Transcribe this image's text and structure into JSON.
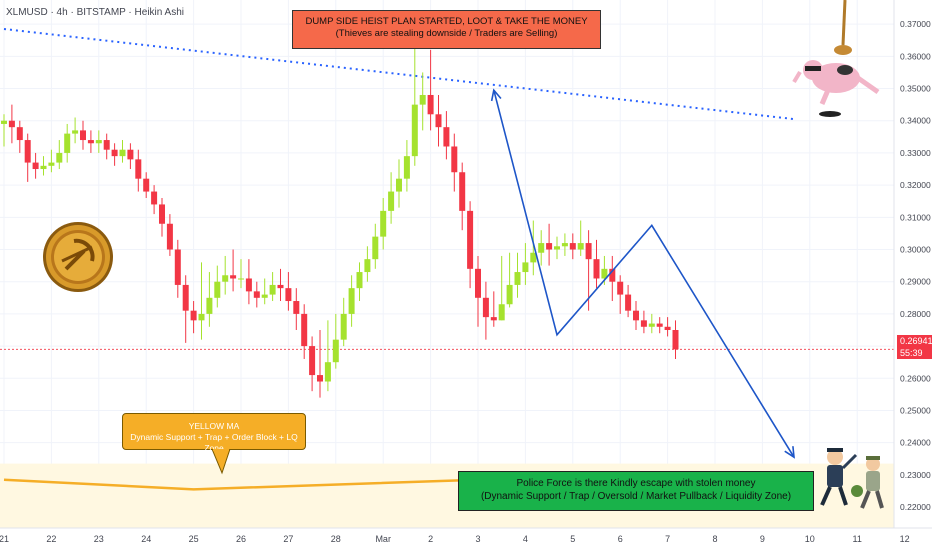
{
  "header": {
    "title": "XLMUSD · 4h · BITSTAMP · Heikin Ashi"
  },
  "annotations": {
    "top_line1": "DUMP SIDE HEIST PLAN STARTED, LOOT & TAKE THE MONEY",
    "top_line2": "(Thieves are stealing downside / Traders are Selling)",
    "ma_line1": "YELLOW MA",
    "ma_line2": "Dynamic Support + Trap + Order Block + LQ Zone",
    "police_line1": "Police Force is there Kindly escape with stolen money",
    "police_line2": "(Dynamic Support / Trap / Oversold / Market Pullback / Liquidity Zone)"
  },
  "price_tag": {
    "price": "0.26941",
    "countdown": "55:39"
  },
  "colors": {
    "up": "#a5e22e",
    "down": "#f23645",
    "ma": "#f5ae27",
    "trend": "#1e56c8",
    "dotted": "#2962ff"
  },
  "chart_data": {
    "type": "candlestick",
    "title": "XLMUSD · 4h · BITSTAMP · Heikin Ashi",
    "ylim": [
      0.2135,
      0.3775
    ],
    "y_ticks": [
      "0.37000",
      "0.36000",
      "0.35000",
      "0.34000",
      "0.33000",
      "0.32000",
      "0.31000",
      "0.30000",
      "0.29000",
      "0.28000",
      "0.27000",
      "0.26000",
      "0.25000",
      "0.24000",
      "0.23000",
      "0.22000"
    ],
    "x_ticks": [
      {
        "i": 0,
        "label": "21"
      },
      {
        "i": 6,
        "label": "22"
      },
      {
        "i": 12,
        "label": "23"
      },
      {
        "i": 18,
        "label": "24"
      },
      {
        "i": 24,
        "label": "25"
      },
      {
        "i": 30,
        "label": "26"
      },
      {
        "i": 36,
        "label": "27"
      },
      {
        "i": 42,
        "label": "28"
      },
      {
        "i": 48,
        "label": "Mar"
      },
      {
        "i": 54,
        "label": "2"
      },
      {
        "i": 60,
        "label": "3"
      },
      {
        "i": 66,
        "label": "4"
      },
      {
        "i": 72,
        "label": "5"
      },
      {
        "i": 78,
        "label": "6"
      },
      {
        "i": 84,
        "label": "7"
      },
      {
        "i": 90,
        "label": "8"
      },
      {
        "i": 96,
        "label": "9"
      },
      {
        "i": 102,
        "label": "10"
      },
      {
        "i": 108,
        "label": "11"
      },
      {
        "i": 114,
        "label": "12"
      }
    ],
    "candles": [
      [
        0.339,
        0.34,
        0.342,
        0.332
      ],
      [
        0.34,
        0.338,
        0.345,
        0.333
      ],
      [
        0.338,
        0.334,
        0.34,
        0.33
      ],
      [
        0.334,
        0.327,
        0.336,
        0.321
      ],
      [
        0.327,
        0.325,
        0.33,
        0.322
      ],
      [
        0.325,
        0.326,
        0.329,
        0.323
      ],
      [
        0.326,
        0.327,
        0.331,
        0.324
      ],
      [
        0.327,
        0.33,
        0.334,
        0.325
      ],
      [
        0.33,
        0.336,
        0.339,
        0.327
      ],
      [
        0.336,
        0.337,
        0.341,
        0.333
      ],
      [
        0.337,
        0.334,
        0.34,
        0.331
      ],
      [
        0.334,
        0.333,
        0.337,
        0.33
      ],
      [
        0.333,
        0.334,
        0.337,
        0.33
      ],
      [
        0.334,
        0.331,
        0.336,
        0.328
      ],
      [
        0.331,
        0.329,
        0.333,
        0.326
      ],
      [
        0.329,
        0.331,
        0.334,
        0.327
      ],
      [
        0.331,
        0.328,
        0.333,
        0.325
      ],
      [
        0.328,
        0.322,
        0.331,
        0.318
      ],
      [
        0.322,
        0.318,
        0.324,
        0.316
      ],
      [
        0.318,
        0.314,
        0.32,
        0.311
      ],
      [
        0.314,
        0.308,
        0.316,
        0.304
      ],
      [
        0.308,
        0.3,
        0.311,
        0.298
      ],
      [
        0.3,
        0.289,
        0.303,
        0.285
      ],
      [
        0.289,
        0.281,
        0.292,
        0.271
      ],
      [
        0.281,
        0.278,
        0.284,
        0.274
      ],
      [
        0.278,
        0.28,
        0.296,
        0.272
      ],
      [
        0.28,
        0.285,
        0.293,
        0.276
      ],
      [
        0.285,
        0.29,
        0.295,
        0.282
      ],
      [
        0.29,
        0.292,
        0.298,
        0.286
      ],
      [
        0.292,
        0.291,
        0.3,
        0.287
      ],
      [
        0.291,
        0.291,
        0.297,
        0.288
      ],
      [
        0.291,
        0.287,
        0.297,
        0.283
      ],
      [
        0.287,
        0.285,
        0.29,
        0.282
      ],
      [
        0.285,
        0.286,
        0.291,
        0.283
      ],
      [
        0.286,
        0.289,
        0.293,
        0.284
      ],
      [
        0.289,
        0.288,
        0.294,
        0.284
      ],
      [
        0.288,
        0.284,
        0.293,
        0.281
      ],
      [
        0.284,
        0.28,
        0.288,
        0.275
      ],
      [
        0.28,
        0.27,
        0.283,
        0.266
      ],
      [
        0.27,
        0.261,
        0.273,
        0.256
      ],
      [
        0.261,
        0.259,
        0.275,
        0.254
      ],
      [
        0.259,
        0.265,
        0.278,
        0.256
      ],
      [
        0.265,
        0.272,
        0.28,
        0.263
      ],
      [
        0.272,
        0.28,
        0.285,
        0.27
      ],
      [
        0.28,
        0.288,
        0.292,
        0.276
      ],
      [
        0.288,
        0.293,
        0.296,
        0.284
      ],
      [
        0.293,
        0.297,
        0.301,
        0.29
      ],
      [
        0.297,
        0.304,
        0.308,
        0.294
      ],
      [
        0.304,
        0.312,
        0.316,
        0.3
      ],
      [
        0.312,
        0.318,
        0.324,
        0.308
      ],
      [
        0.318,
        0.322,
        0.328,
        0.313
      ],
      [
        0.322,
        0.329,
        0.334,
        0.318
      ],
      [
        0.329,
        0.345,
        0.364,
        0.326
      ],
      [
        0.345,
        0.348,
        0.355,
        0.337
      ],
      [
        0.348,
        0.342,
        0.362,
        0.337
      ],
      [
        0.342,
        0.338,
        0.348,
        0.332
      ],
      [
        0.338,
        0.332,
        0.343,
        0.328
      ],
      [
        0.332,
        0.324,
        0.336,
        0.318
      ],
      [
        0.324,
        0.312,
        0.327,
        0.306
      ],
      [
        0.312,
        0.294,
        0.315,
        0.288
      ],
      [
        0.294,
        0.285,
        0.298,
        0.276
      ],
      [
        0.285,
        0.279,
        0.29,
        0.272
      ],
      [
        0.279,
        0.278,
        0.287,
        0.276
      ],
      [
        0.278,
        0.283,
        0.298,
        0.278
      ],
      [
        0.283,
        0.289,
        0.299,
        0.282
      ],
      [
        0.289,
        0.293,
        0.299,
        0.285
      ],
      [
        0.293,
        0.296,
        0.302,
        0.289
      ],
      [
        0.296,
        0.299,
        0.309,
        0.292
      ],
      [
        0.299,
        0.302,
        0.306,
        0.295
      ],
      [
        0.302,
        0.3,
        0.308,
        0.295
      ],
      [
        0.3,
        0.301,
        0.304,
        0.297
      ],
      [
        0.301,
        0.302,
        0.305,
        0.298
      ],
      [
        0.302,
        0.3,
        0.305,
        0.297
      ],
      [
        0.3,
        0.302,
        0.309,
        0.298
      ],
      [
        0.302,
        0.297,
        0.306,
        0.281
      ],
      [
        0.297,
        0.291,
        0.303,
        0.288
      ],
      [
        0.291,
        0.294,
        0.298,
        0.289
      ],
      [
        0.294,
        0.29,
        0.298,
        0.284
      ],
      [
        0.29,
        0.286,
        0.292,
        0.28
      ],
      [
        0.286,
        0.281,
        0.289,
        0.279
      ],
      [
        0.281,
        0.278,
        0.284,
        0.275
      ],
      [
        0.278,
        0.276,
        0.281,
        0.274
      ],
      [
        0.276,
        0.277,
        0.28,
        0.274
      ],
      [
        0.277,
        0.276,
        0.279,
        0.274
      ],
      [
        0.276,
        0.275,
        0.279,
        0.273
      ],
      [
        0.275,
        0.269,
        0.278,
        0.266
      ]
    ],
    "ma": [
      [
        0,
        0.2285
      ],
      [
        24,
        0.2255
      ],
      [
        60,
        0.2285
      ],
      [
        100,
        0.2305
      ]
    ],
    "dotted_trend": [
      [
        0,
        0.3685
      ],
      [
        100,
        0.3405
      ]
    ],
    "arrows": [
      [
        62,
        0.3495
      ],
      [
        70,
        0.2735
      ],
      [
        82,
        0.3075
      ],
      [
        100,
        0.2355
      ]
    ]
  }
}
